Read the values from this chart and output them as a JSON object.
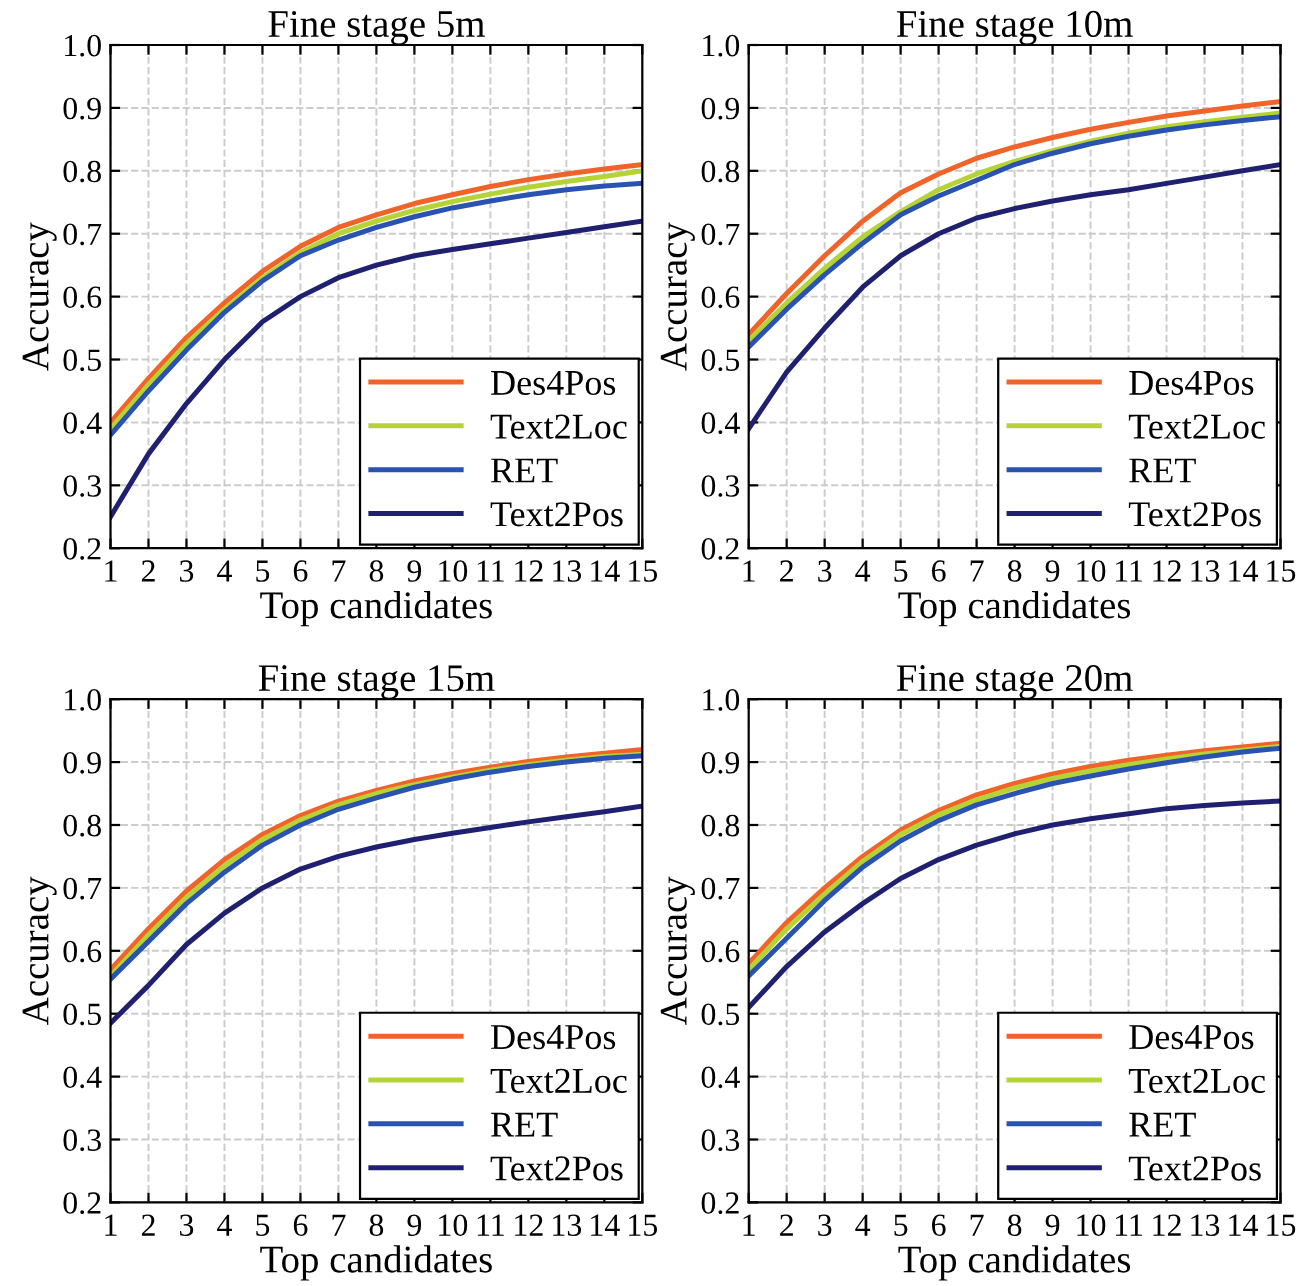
{
  "chart_data": [
    {
      "type": "line",
      "title": "Fine stage 5m",
      "xlabel": "Top candidates",
      "ylabel": "Accuracy",
      "x": [
        1,
        2,
        3,
        4,
        5,
        6,
        7,
        8,
        9,
        10,
        11,
        12,
        13,
        14,
        15
      ],
      "xlim": [
        1,
        15
      ],
      "xticks": [
        1,
        2,
        3,
        4,
        5,
        6,
        7,
        8,
        9,
        10,
        11,
        12,
        13,
        14,
        15
      ],
      "ylim": [
        0.2,
        1.0
      ],
      "yticks": [
        {
          "value": 0.2,
          "label": "0.2"
        },
        {
          "value": 0.3,
          "label": "0.3"
        },
        {
          "value": 0.4,
          "label": "0.4"
        },
        {
          "value": 0.5,
          "label": "0.5"
        },
        {
          "value": 0.6,
          "label": "0.6"
        },
        {
          "value": 0.7,
          "label": "0.7"
        },
        {
          "value": 0.8,
          "label": "0.8"
        },
        {
          "value": 0.9,
          "label": "0.9"
        },
        {
          "value": 1.0,
          "label": "1.0"
        }
      ],
      "grid": true,
      "legend": "bottom right",
      "marker": "none",
      "line_style": "solid",
      "series": [
        {
          "name": "Des4Pos",
          "color": "#f0642a",
          "values": [
            0.4,
            0.47,
            0.535,
            0.59,
            0.64,
            0.68,
            0.71,
            0.73,
            0.748,
            0.762,
            0.775,
            0.786,
            0.795,
            0.803,
            0.81
          ]
        },
        {
          "name": "Text2Loc",
          "color": "#b5d334",
          "values": [
            0.39,
            0.46,
            0.525,
            0.58,
            0.63,
            0.67,
            0.7,
            0.72,
            0.737,
            0.751,
            0.763,
            0.774,
            0.783,
            0.791,
            0.8
          ]
        },
        {
          "name": "RET",
          "color": "#2a52b0",
          "values": [
            0.38,
            0.45,
            0.515,
            0.575,
            0.625,
            0.665,
            0.69,
            0.71,
            0.727,
            0.741,
            0.752,
            0.762,
            0.77,
            0.776,
            0.78
          ]
        },
        {
          "name": "Text2Pos",
          "color": "#1f2070",
          "values": [
            0.25,
            0.35,
            0.43,
            0.5,
            0.56,
            0.6,
            0.63,
            0.65,
            0.665,
            0.675,
            0.684,
            0.693,
            0.702,
            0.711,
            0.72
          ]
        }
      ]
    },
    {
      "type": "line",
      "title": "Fine stage 10m",
      "xlabel": "Top candidates",
      "ylabel": "Accuracy",
      "x": [
        1,
        2,
        3,
        4,
        5,
        6,
        7,
        8,
        9,
        10,
        11,
        12,
        13,
        14,
        15
      ],
      "xlim": [
        1,
        15
      ],
      "xticks": [
        1,
        2,
        3,
        4,
        5,
        6,
        7,
        8,
        9,
        10,
        11,
        12,
        13,
        14,
        15
      ],
      "ylim": [
        0.2,
        1.0
      ],
      "yticks": [
        {
          "value": 0.2,
          "label": "0.2"
        },
        {
          "value": 0.3,
          "label": "0.3"
        },
        {
          "value": 0.4,
          "label": "0.4"
        },
        {
          "value": 0.5,
          "label": "0.5"
        },
        {
          "value": 0.6,
          "label": "0.6"
        },
        {
          "value": 0.7,
          "label": "0.7"
        },
        {
          "value": 0.8,
          "label": "0.8"
        },
        {
          "value": 0.9,
          "label": "0.9"
        },
        {
          "value": 1.0,
          "label": "1.0"
        }
      ],
      "grid": true,
      "legend": "bottom right",
      "marker": "none",
      "line_style": "solid",
      "series": [
        {
          "name": "Des4Pos",
          "color": "#f0642a",
          "values": [
            0.54,
            0.605,
            0.665,
            0.72,
            0.765,
            0.795,
            0.82,
            0.838,
            0.853,
            0.866,
            0.877,
            0.887,
            0.895,
            0.903,
            0.91
          ]
        },
        {
          "name": "Text2Loc",
          "color": "#b5d334",
          "values": [
            0.53,
            0.59,
            0.645,
            0.695,
            0.735,
            0.77,
            0.795,
            0.815,
            0.832,
            0.847,
            0.86,
            0.87,
            0.878,
            0.885,
            0.892
          ]
        },
        {
          "name": "RET",
          "color": "#2a52b0",
          "values": [
            0.52,
            0.58,
            0.635,
            0.685,
            0.73,
            0.76,
            0.785,
            0.81,
            0.828,
            0.843,
            0.855,
            0.865,
            0.873,
            0.88,
            0.886
          ]
        },
        {
          "name": "Text2Pos",
          "color": "#1f2070",
          "values": [
            0.39,
            0.48,
            0.55,
            0.615,
            0.665,
            0.7,
            0.725,
            0.74,
            0.752,
            0.762,
            0.77,
            0.78,
            0.79,
            0.8,
            0.81
          ]
        }
      ]
    },
    {
      "type": "line",
      "title": "Fine stage 15m",
      "xlabel": "Top candidates",
      "ylabel": "Accuracy",
      "x": [
        1,
        2,
        3,
        4,
        5,
        6,
        7,
        8,
        9,
        10,
        11,
        12,
        13,
        14,
        15
      ],
      "xlim": [
        1,
        15
      ],
      "xticks": [
        1,
        2,
        3,
        4,
        5,
        6,
        7,
        8,
        9,
        10,
        11,
        12,
        13,
        14,
        15
      ],
      "ylim": [
        0.2,
        1.0
      ],
      "yticks": [
        {
          "value": 0.2,
          "label": "0.2"
        },
        {
          "value": 0.3,
          "label": "0.3"
        },
        {
          "value": 0.4,
          "label": "0.4"
        },
        {
          "value": 0.5,
          "label": "0.5"
        },
        {
          "value": 0.6,
          "label": "0.6"
        },
        {
          "value": 0.7,
          "label": "0.7"
        },
        {
          "value": 0.8,
          "label": "0.8"
        },
        {
          "value": 0.9,
          "label": "0.9"
        },
        {
          "value": 1.0,
          "label": "1.0"
        }
      ],
      "grid": true,
      "legend": "bottom right",
      "marker": "none",
      "line_style": "solid",
      "series": [
        {
          "name": "Des4Pos",
          "color": "#f0642a",
          "values": [
            0.57,
            0.635,
            0.695,
            0.745,
            0.785,
            0.815,
            0.838,
            0.855,
            0.87,
            0.882,
            0.892,
            0.901,
            0.908,
            0.914,
            0.92
          ]
        },
        {
          "name": "Text2Loc",
          "color": "#b5d334",
          "values": [
            0.56,
            0.625,
            0.685,
            0.735,
            0.777,
            0.808,
            0.832,
            0.85,
            0.864,
            0.876,
            0.887,
            0.896,
            0.903,
            0.909,
            0.912
          ]
        },
        {
          "name": "RET",
          "color": "#2a52b0",
          "values": [
            0.555,
            0.615,
            0.675,
            0.725,
            0.768,
            0.8,
            0.825,
            0.843,
            0.86,
            0.873,
            0.884,
            0.893,
            0.9,
            0.906,
            0.91
          ]
        },
        {
          "name": "Text2Pos",
          "color": "#1f2070",
          "values": [
            0.485,
            0.545,
            0.61,
            0.66,
            0.7,
            0.73,
            0.75,
            0.765,
            0.777,
            0.787,
            0.796,
            0.805,
            0.813,
            0.821,
            0.83
          ]
        }
      ]
    },
    {
      "type": "line",
      "title": "Fine stage 20m",
      "xlabel": "Top candidates",
      "ylabel": "Accuracy",
      "x": [
        1,
        2,
        3,
        4,
        5,
        6,
        7,
        8,
        9,
        10,
        11,
        12,
        13,
        14,
        15
      ],
      "xlim": [
        1,
        15
      ],
      "xticks": [
        1,
        2,
        3,
        4,
        5,
        6,
        7,
        8,
        9,
        10,
        11,
        12,
        13,
        14,
        15
      ],
      "ylim": [
        0.2,
        1.0
      ],
      "yticks": [
        {
          "value": 0.2,
          "label": "0.2"
        },
        {
          "value": 0.3,
          "label": "0.3"
        },
        {
          "value": 0.4,
          "label": "0.4"
        },
        {
          "value": 0.5,
          "label": "0.5"
        },
        {
          "value": 0.6,
          "label": "0.6"
        },
        {
          "value": 0.7,
          "label": "0.7"
        },
        {
          "value": 0.8,
          "label": "0.8"
        },
        {
          "value": 0.9,
          "label": "0.9"
        },
        {
          "value": 1.0,
          "label": "1.0"
        }
      ],
      "grid": true,
      "legend": "bottom right",
      "marker": "none",
      "line_style": "solid",
      "series": [
        {
          "name": "Des4Pos",
          "color": "#f0642a",
          "values": [
            0.58,
            0.645,
            0.7,
            0.75,
            0.792,
            0.823,
            0.848,
            0.866,
            0.881,
            0.893,
            0.903,
            0.911,
            0.918,
            0.924,
            0.93
          ]
        },
        {
          "name": "Text2Loc",
          "color": "#b5d334",
          "values": [
            0.57,
            0.635,
            0.69,
            0.742,
            0.785,
            0.816,
            0.84,
            0.859,
            0.874,
            0.886,
            0.896,
            0.905,
            0.913,
            0.919,
            0.925
          ]
        },
        {
          "name": "RET",
          "color": "#2a52b0",
          "values": [
            0.56,
            0.62,
            0.68,
            0.733,
            0.775,
            0.807,
            0.832,
            0.85,
            0.866,
            0.878,
            0.889,
            0.899,
            0.908,
            0.916,
            0.922
          ]
        },
        {
          "name": "Text2Pos",
          "color": "#1f2070",
          "values": [
            0.51,
            0.575,
            0.63,
            0.675,
            0.715,
            0.745,
            0.768,
            0.786,
            0.8,
            0.81,
            0.818,
            0.826,
            0.831,
            0.835,
            0.838
          ]
        }
      ]
    }
  ]
}
